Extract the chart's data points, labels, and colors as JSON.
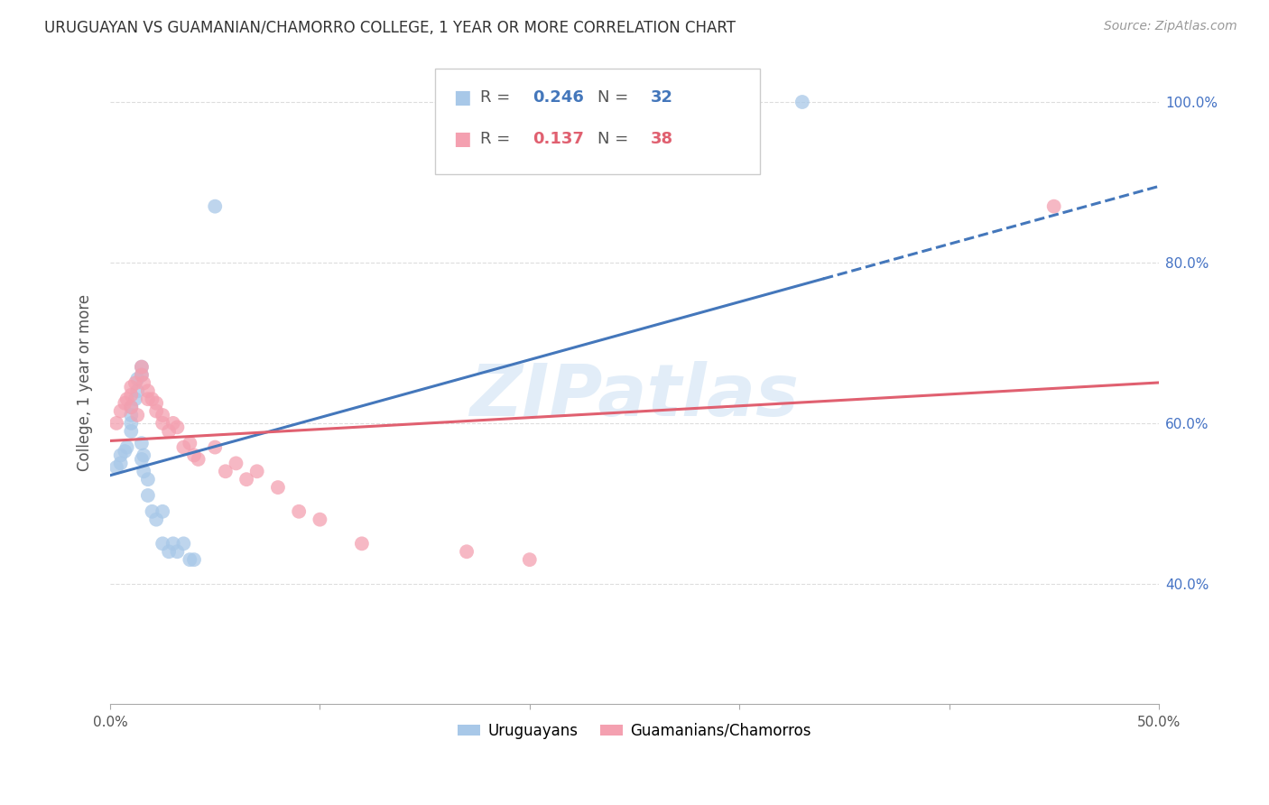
{
  "title": "URUGUAYAN VS GUAMANIAN/CHAMORRO COLLEGE, 1 YEAR OR MORE CORRELATION CHART",
  "source": "Source: ZipAtlas.com",
  "ylabel": "College, 1 year or more",
  "xlim": [
    0.0,
    0.5
  ],
  "ylim": [
    0.25,
    1.05
  ],
  "xticks": [
    0.0,
    0.1,
    0.2,
    0.3,
    0.4,
    0.5
  ],
  "xticklabels": [
    "0.0%",
    "",
    "",
    "",
    "",
    "50.0%"
  ],
  "yticks_right": [
    0.4,
    0.6,
    0.8,
    1.0
  ],
  "yticklabels_right": [
    "40.0%",
    "60.0%",
    "80.0%",
    "100.0%"
  ],
  "watermark": "ZIPatlas",
  "blue_color": "#a8c8e8",
  "pink_color": "#f4a0b0",
  "blue_line_color": "#4477bb",
  "pink_line_color": "#e06070",
  "uruguayan_x": [
    0.003,
    0.005,
    0.005,
    0.007,
    0.008,
    0.01,
    0.01,
    0.01,
    0.01,
    0.012,
    0.013,
    0.013,
    0.015,
    0.015,
    0.015,
    0.015,
    0.016,
    0.016,
    0.018,
    0.018,
    0.02,
    0.022,
    0.025,
    0.025,
    0.028,
    0.03,
    0.032,
    0.035,
    0.038,
    0.04,
    0.05,
    0.33
  ],
  "uruguayan_y": [
    0.545,
    0.56,
    0.55,
    0.565,
    0.57,
    0.59,
    0.6,
    0.61,
    0.62,
    0.63,
    0.64,
    0.655,
    0.66,
    0.67,
    0.555,
    0.575,
    0.56,
    0.54,
    0.53,
    0.51,
    0.49,
    0.48,
    0.49,
    0.45,
    0.44,
    0.45,
    0.44,
    0.45,
    0.43,
    0.43,
    0.87,
    1.0
  ],
  "guamanian_x": [
    0.003,
    0.005,
    0.007,
    0.008,
    0.01,
    0.01,
    0.01,
    0.012,
    0.013,
    0.015,
    0.015,
    0.016,
    0.018,
    0.018,
    0.02,
    0.022,
    0.022,
    0.025,
    0.025,
    0.028,
    0.03,
    0.032,
    0.035,
    0.038,
    0.04,
    0.042,
    0.05,
    0.055,
    0.06,
    0.065,
    0.07,
    0.08,
    0.09,
    0.1,
    0.12,
    0.17,
    0.2,
    0.45
  ],
  "guamanian_y": [
    0.6,
    0.615,
    0.625,
    0.63,
    0.62,
    0.635,
    0.645,
    0.65,
    0.61,
    0.66,
    0.67,
    0.65,
    0.64,
    0.63,
    0.63,
    0.625,
    0.615,
    0.61,
    0.6,
    0.59,
    0.6,
    0.595,
    0.57,
    0.575,
    0.56,
    0.555,
    0.57,
    0.54,
    0.55,
    0.53,
    0.54,
    0.52,
    0.49,
    0.48,
    0.45,
    0.44,
    0.43,
    0.87
  ],
  "background_color": "#ffffff",
  "grid_color": "#dddddd"
}
